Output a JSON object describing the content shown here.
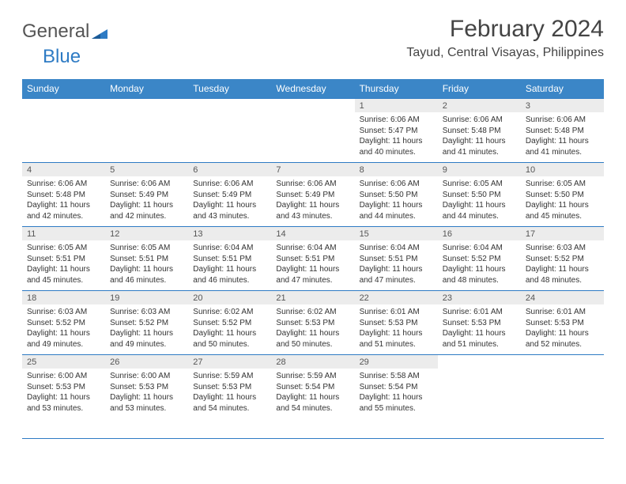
{
  "logo": {
    "text1": "General",
    "text2": "Blue"
  },
  "header": {
    "month": "February 2024",
    "location": "Tayud, Central Visayas, Philippines"
  },
  "calendar": {
    "day_header_bg": "#3b86c7",
    "day_header_fg": "#ffffff",
    "divider_color": "#2e7bc4",
    "daynum_bg": "#ececec",
    "days": [
      "Sunday",
      "Monday",
      "Tuesday",
      "Wednesday",
      "Thursday",
      "Friday",
      "Saturday"
    ],
    "weeks": [
      [
        {
          "n": "",
          "lines": [
            "",
            "",
            "",
            ""
          ]
        },
        {
          "n": "",
          "lines": [
            "",
            "",
            "",
            ""
          ]
        },
        {
          "n": "",
          "lines": [
            "",
            "",
            "",
            ""
          ]
        },
        {
          "n": "",
          "lines": [
            "",
            "",
            "",
            ""
          ]
        },
        {
          "n": "1",
          "lines": [
            "Sunrise: 6:06 AM",
            "Sunset: 5:47 PM",
            "Daylight: 11 hours",
            "and 40 minutes."
          ]
        },
        {
          "n": "2",
          "lines": [
            "Sunrise: 6:06 AM",
            "Sunset: 5:48 PM",
            "Daylight: 11 hours",
            "and 41 minutes."
          ]
        },
        {
          "n": "3",
          "lines": [
            "Sunrise: 6:06 AM",
            "Sunset: 5:48 PM",
            "Daylight: 11 hours",
            "and 41 minutes."
          ]
        }
      ],
      [
        {
          "n": "4",
          "lines": [
            "Sunrise: 6:06 AM",
            "Sunset: 5:48 PM",
            "Daylight: 11 hours",
            "and 42 minutes."
          ]
        },
        {
          "n": "5",
          "lines": [
            "Sunrise: 6:06 AM",
            "Sunset: 5:49 PM",
            "Daylight: 11 hours",
            "and 42 minutes."
          ]
        },
        {
          "n": "6",
          "lines": [
            "Sunrise: 6:06 AM",
            "Sunset: 5:49 PM",
            "Daylight: 11 hours",
            "and 43 minutes."
          ]
        },
        {
          "n": "7",
          "lines": [
            "Sunrise: 6:06 AM",
            "Sunset: 5:49 PM",
            "Daylight: 11 hours",
            "and 43 minutes."
          ]
        },
        {
          "n": "8",
          "lines": [
            "Sunrise: 6:06 AM",
            "Sunset: 5:50 PM",
            "Daylight: 11 hours",
            "and 44 minutes."
          ]
        },
        {
          "n": "9",
          "lines": [
            "Sunrise: 6:05 AM",
            "Sunset: 5:50 PM",
            "Daylight: 11 hours",
            "and 44 minutes."
          ]
        },
        {
          "n": "10",
          "lines": [
            "Sunrise: 6:05 AM",
            "Sunset: 5:50 PM",
            "Daylight: 11 hours",
            "and 45 minutes."
          ]
        }
      ],
      [
        {
          "n": "11",
          "lines": [
            "Sunrise: 6:05 AM",
            "Sunset: 5:51 PM",
            "Daylight: 11 hours",
            "and 45 minutes."
          ]
        },
        {
          "n": "12",
          "lines": [
            "Sunrise: 6:05 AM",
            "Sunset: 5:51 PM",
            "Daylight: 11 hours",
            "and 46 minutes."
          ]
        },
        {
          "n": "13",
          "lines": [
            "Sunrise: 6:04 AM",
            "Sunset: 5:51 PM",
            "Daylight: 11 hours",
            "and 46 minutes."
          ]
        },
        {
          "n": "14",
          "lines": [
            "Sunrise: 6:04 AM",
            "Sunset: 5:51 PM",
            "Daylight: 11 hours",
            "and 47 minutes."
          ]
        },
        {
          "n": "15",
          "lines": [
            "Sunrise: 6:04 AM",
            "Sunset: 5:51 PM",
            "Daylight: 11 hours",
            "and 47 minutes."
          ]
        },
        {
          "n": "16",
          "lines": [
            "Sunrise: 6:04 AM",
            "Sunset: 5:52 PM",
            "Daylight: 11 hours",
            "and 48 minutes."
          ]
        },
        {
          "n": "17",
          "lines": [
            "Sunrise: 6:03 AM",
            "Sunset: 5:52 PM",
            "Daylight: 11 hours",
            "and 48 minutes."
          ]
        }
      ],
      [
        {
          "n": "18",
          "lines": [
            "Sunrise: 6:03 AM",
            "Sunset: 5:52 PM",
            "Daylight: 11 hours",
            "and 49 minutes."
          ]
        },
        {
          "n": "19",
          "lines": [
            "Sunrise: 6:03 AM",
            "Sunset: 5:52 PM",
            "Daylight: 11 hours",
            "and 49 minutes."
          ]
        },
        {
          "n": "20",
          "lines": [
            "Sunrise: 6:02 AM",
            "Sunset: 5:52 PM",
            "Daylight: 11 hours",
            "and 50 minutes."
          ]
        },
        {
          "n": "21",
          "lines": [
            "Sunrise: 6:02 AM",
            "Sunset: 5:53 PM",
            "Daylight: 11 hours",
            "and 50 minutes."
          ]
        },
        {
          "n": "22",
          "lines": [
            "Sunrise: 6:01 AM",
            "Sunset: 5:53 PM",
            "Daylight: 11 hours",
            "and 51 minutes."
          ]
        },
        {
          "n": "23",
          "lines": [
            "Sunrise: 6:01 AM",
            "Sunset: 5:53 PM",
            "Daylight: 11 hours",
            "and 51 minutes."
          ]
        },
        {
          "n": "24",
          "lines": [
            "Sunrise: 6:01 AM",
            "Sunset: 5:53 PM",
            "Daylight: 11 hours",
            "and 52 minutes."
          ]
        }
      ],
      [
        {
          "n": "25",
          "lines": [
            "Sunrise: 6:00 AM",
            "Sunset: 5:53 PM",
            "Daylight: 11 hours",
            "and 53 minutes."
          ]
        },
        {
          "n": "26",
          "lines": [
            "Sunrise: 6:00 AM",
            "Sunset: 5:53 PM",
            "Daylight: 11 hours",
            "and 53 minutes."
          ]
        },
        {
          "n": "27",
          "lines": [
            "Sunrise: 5:59 AM",
            "Sunset: 5:53 PM",
            "Daylight: 11 hours",
            "and 54 minutes."
          ]
        },
        {
          "n": "28",
          "lines": [
            "Sunrise: 5:59 AM",
            "Sunset: 5:54 PM",
            "Daylight: 11 hours",
            "and 54 minutes."
          ]
        },
        {
          "n": "29",
          "lines": [
            "Sunrise: 5:58 AM",
            "Sunset: 5:54 PM",
            "Daylight: 11 hours",
            "and 55 minutes."
          ]
        },
        {
          "n": "",
          "lines": [
            "",
            "",
            "",
            ""
          ]
        },
        {
          "n": "",
          "lines": [
            "",
            "",
            "",
            ""
          ]
        }
      ]
    ]
  }
}
